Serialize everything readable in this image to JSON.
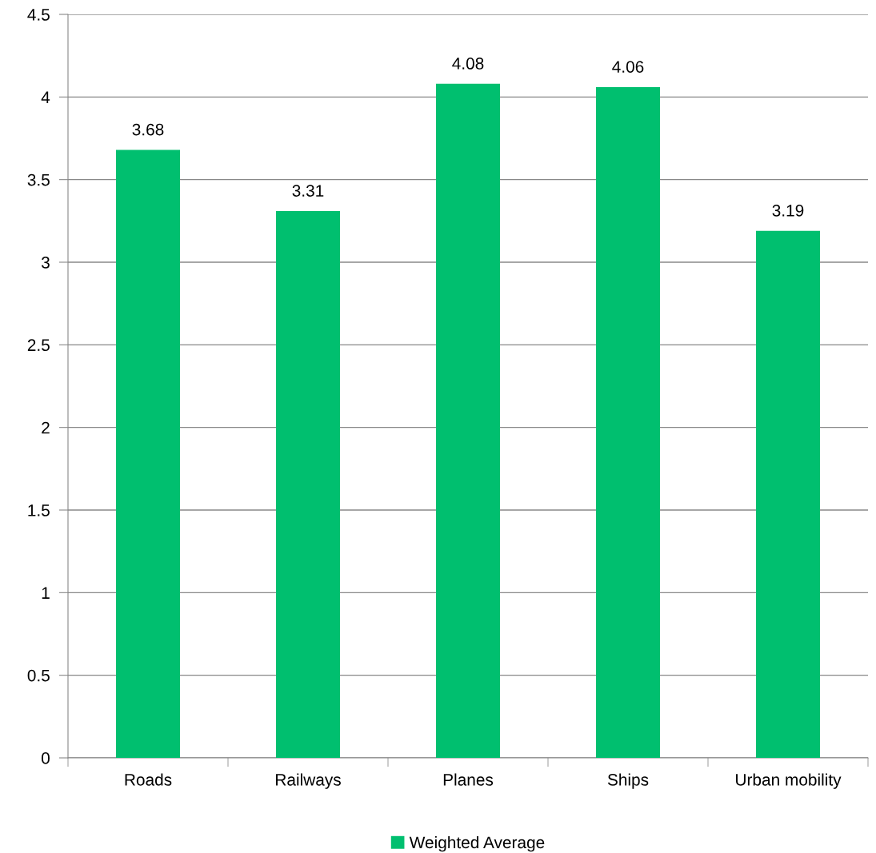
{
  "chart_data": {
    "type": "bar",
    "categories": [
      "Roads",
      "Railways",
      "Planes",
      "Ships",
      "Urban mobility"
    ],
    "series": [
      {
        "name": "Weighted Average",
        "color": "#00bf6f",
        "values": [
          3.68,
          3.31,
          4.08,
          4.06,
          3.19
        ]
      }
    ],
    "ylim": [
      0,
      4.5
    ],
    "yticks": [
      0,
      0.5,
      1,
      1.5,
      2,
      2.5,
      3,
      3.5,
      4,
      4.5
    ],
    "grid": "y",
    "legend": "bottom",
    "data_labels": true
  }
}
